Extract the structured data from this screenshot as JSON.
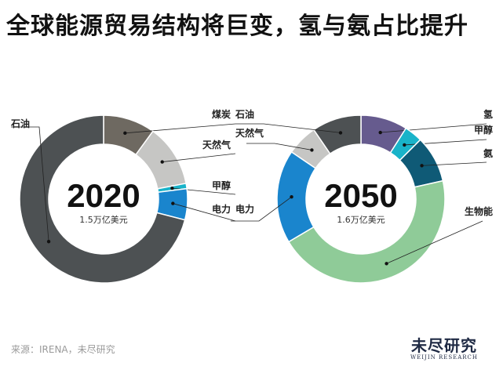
{
  "headline": "全球能源贸易结构将巨变，氢与氨占比提升",
  "source": "来源：IRENA，未尽研究",
  "logo": {
    "cn": "未尽研究",
    "en": "WEIJIN RESEARCH"
  },
  "colors": {
    "石油": "#4d5153",
    "煤炭": "#6e6961",
    "天然气": "#c6c6c4",
    "甲醇": "#19b3c9",
    "电力": "#1a85cd",
    "氢": "#665b8e",
    "氨": "#0f5a76",
    "生物能": "#8fcb98"
  },
  "chart_data": [
    {
      "type": "pie",
      "year": "2020",
      "total": "1.5万亿美元",
      "slices": [
        {
          "label": "煤炭",
          "value": 10
        },
        {
          "label": "天然气",
          "value": 12
        },
        {
          "label": "甲醇",
          "value": 1
        },
        {
          "label": "电力",
          "value": 6
        },
        {
          "label": "石油",
          "value": 71
        }
      ]
    },
    {
      "type": "pie",
      "year": "2050",
      "total": "1.6万亿美元",
      "slices": [
        {
          "label": "氢",
          "value": 9
        },
        {
          "label": "甲醇",
          "value": 3.5
        },
        {
          "label": "氨",
          "value": 9
        },
        {
          "label": "生物能",
          "value": 45
        },
        {
          "label": "电力",
          "value": 18
        },
        {
          "label": "天然气",
          "value": 6
        },
        {
          "label": "石油",
          "value": 9.5
        }
      ]
    }
  ]
}
